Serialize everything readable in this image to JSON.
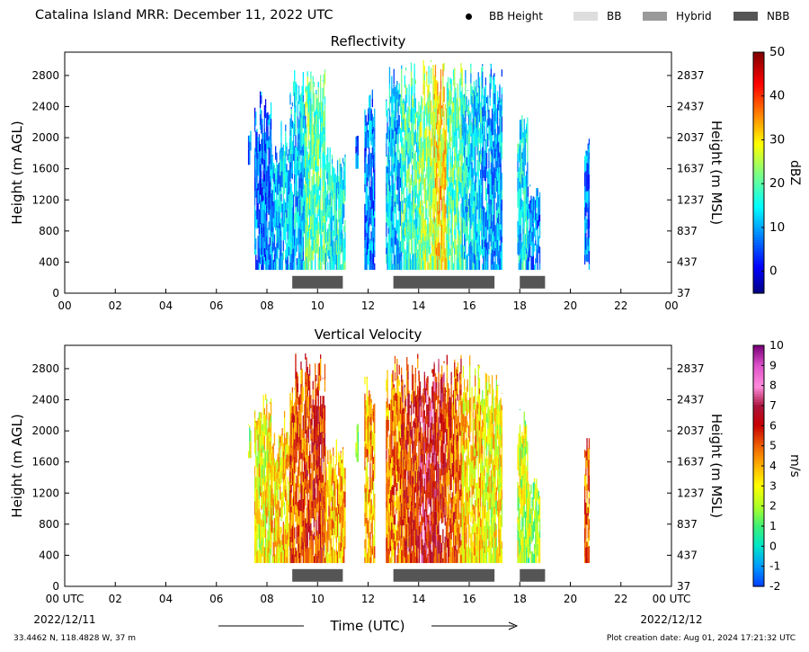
{
  "page": {
    "title": "Catalina Island MRR:  December 11, 2022 UTC",
    "footer_left": "33.4462 N, 118.4828 W, 37 m",
    "footer_right": "Plot creation date: Aug 01, 2024 17:21:32 UTC"
  },
  "legend": [
    {
      "label": "BB Height",
      "kind": "dot",
      "color": "#000000"
    },
    {
      "label": "BB",
      "kind": "swatch",
      "color": "#dddddd"
    },
    {
      "label": "Hybrid",
      "kind": "swatch",
      "color": "#999999"
    },
    {
      "label": "NBB",
      "kind": "swatch",
      "color": "#555555"
    }
  ],
  "xaxis": {
    "label": "Time (UTC)",
    "start_date": "2022/12/11",
    "end_date": "2022/12/12",
    "ticks_top_panel": [
      "00",
      "02",
      "04",
      "06",
      "08",
      "10",
      "12",
      "14",
      "16",
      "18",
      "20",
      "22",
      "00"
    ],
    "ticks_bottom_panel": [
      "00 UTC",
      "02",
      "04",
      "06",
      "08",
      "10",
      "12",
      "14",
      "16",
      "18",
      "20",
      "22",
      "00 UTC"
    ]
  },
  "chart_data": [
    {
      "type": "heatmap",
      "title": "Reflectivity",
      "xlabel": "",
      "ylabel": "Height (m AGL)",
      "ylabel_right": "Height (m MSL)",
      "xlim": [
        0,
        24
      ],
      "ylim": [
        0,
        3100
      ],
      "y_ticks": [
        "0",
        "400",
        "800",
        "1200",
        "1600",
        "2000",
        "2400",
        "2800"
      ],
      "y_ticks_right": [
        "37",
        "437",
        "837",
        "1237",
        "1637",
        "2037",
        "2437",
        "2837"
      ],
      "colorbar": {
        "label": "dBZ",
        "min": -5,
        "max": 50,
        "ticks": [
          "0",
          "10",
          "20",
          "30",
          "40",
          "50"
        ],
        "palette": "jet"
      },
      "precip_bars": [
        {
          "start": 9.0,
          "end": 11.0,
          "type": "NBB"
        },
        {
          "start": 13.0,
          "end": 17.0,
          "type": "NBB"
        },
        {
          "start": 18.0,
          "end": 19.0,
          "type": "NBB"
        }
      ],
      "echo_segments": [
        {
          "start": 7.25,
          "end": 7.35,
          "base": 1650,
          "top": 2100,
          "level": 8
        },
        {
          "start": 7.5,
          "end": 8.15,
          "base": 300,
          "top": 2600,
          "level": 7
        },
        {
          "start": 8.15,
          "end": 8.5,
          "base": 300,
          "top": 2000,
          "level": 10
        },
        {
          "start": 8.5,
          "end": 8.9,
          "base": 300,
          "top": 2300,
          "level": 12
        },
        {
          "start": 8.9,
          "end": 9.5,
          "base": 300,
          "top": 3000,
          "level": 12
        },
        {
          "start": 9.5,
          "end": 10.3,
          "base": 300,
          "top": 3000,
          "level": 20
        },
        {
          "start": 10.3,
          "end": 11.1,
          "base": 300,
          "top": 1900,
          "level": 16
        },
        {
          "start": 11.5,
          "end": 11.6,
          "base": 1600,
          "top": 2100,
          "level": 6
        },
        {
          "start": 11.85,
          "end": 12.25,
          "base": 300,
          "top": 2800,
          "level": 8
        },
        {
          "start": 12.7,
          "end": 13.3,
          "base": 300,
          "top": 3000,
          "level": 12
        },
        {
          "start": 13.3,
          "end": 14.0,
          "base": 300,
          "top": 3000,
          "level": 18
        },
        {
          "start": 14.0,
          "end": 14.6,
          "base": 300,
          "top": 3000,
          "level": 24
        },
        {
          "start": 14.6,
          "end": 15.1,
          "base": 300,
          "top": 3000,
          "level": 30
        },
        {
          "start": 15.1,
          "end": 15.7,
          "base": 300,
          "top": 3000,
          "level": 20
        },
        {
          "start": 15.7,
          "end": 16.5,
          "base": 300,
          "top": 3000,
          "level": 14
        },
        {
          "start": 16.5,
          "end": 17.3,
          "base": 300,
          "top": 3000,
          "level": 11
        },
        {
          "start": 17.9,
          "end": 18.3,
          "base": 300,
          "top": 2300,
          "level": 14
        },
        {
          "start": 18.3,
          "end": 18.8,
          "base": 300,
          "top": 1400,
          "level": 9
        },
        {
          "start": 20.55,
          "end": 20.75,
          "base": 300,
          "top": 2100,
          "level": 8
        }
      ]
    },
    {
      "type": "heatmap",
      "title": "Vertical Velocity",
      "xlabel": "Time (UTC)",
      "ylabel": "Height (m AGL)",
      "ylabel_right": "Height (m MSL)",
      "xlim": [
        0,
        24
      ],
      "ylim": [
        0,
        3100
      ],
      "y_ticks": [
        "0",
        "400",
        "800",
        "1200",
        "1600",
        "2000",
        "2400",
        "2800"
      ],
      "y_ticks_right": [
        "37",
        "437",
        "837",
        "1237",
        "1637",
        "2037",
        "2437",
        "2837"
      ],
      "colorbar": {
        "label": "m/s",
        "min": -2,
        "max": 10,
        "ticks": [
          "-2",
          "-1",
          "0",
          "1",
          "2",
          "3",
          "4",
          "5",
          "6",
          "7",
          "8",
          "9",
          "10"
        ],
        "palette": "velocity"
      },
      "precip_bars": [
        {
          "start": 9.0,
          "end": 11.0,
          "type": "NBB"
        },
        {
          "start": 13.0,
          "end": 17.0,
          "type": "NBB"
        },
        {
          "start": 18.0,
          "end": 19.0,
          "type": "NBB"
        }
      ],
      "echo_segments": [
        {
          "start": 7.25,
          "end": 7.35,
          "base": 1650,
          "top": 2100,
          "level": 2
        },
        {
          "start": 7.5,
          "end": 8.15,
          "base": 300,
          "top": 2600,
          "level": 3
        },
        {
          "start": 8.15,
          "end": 8.5,
          "base": 300,
          "top": 2000,
          "level": 3.5
        },
        {
          "start": 8.5,
          "end": 8.9,
          "base": 300,
          "top": 2300,
          "level": 3.5
        },
        {
          "start": 8.9,
          "end": 9.5,
          "base": 300,
          "top": 3000,
          "level": 5
        },
        {
          "start": 9.5,
          "end": 10.3,
          "base": 300,
          "top": 3000,
          "level": 5.5
        },
        {
          "start": 10.3,
          "end": 11.1,
          "base": 300,
          "top": 1900,
          "level": 4
        },
        {
          "start": 11.5,
          "end": 11.6,
          "base": 1600,
          "top": 2100,
          "level": 2
        },
        {
          "start": 11.85,
          "end": 12.25,
          "base": 300,
          "top": 2800,
          "level": 4
        },
        {
          "start": 12.7,
          "end": 13.3,
          "base": 300,
          "top": 3000,
          "level": 4.5
        },
        {
          "start": 13.3,
          "end": 14.0,
          "base": 300,
          "top": 3000,
          "level": 5.5
        },
        {
          "start": 14.0,
          "end": 14.6,
          "base": 300,
          "top": 3000,
          "level": 6.5
        },
        {
          "start": 14.6,
          "end": 15.1,
          "base": 300,
          "top": 3000,
          "level": 6
        },
        {
          "start": 15.1,
          "end": 15.7,
          "base": 300,
          "top": 3000,
          "level": 5
        },
        {
          "start": 15.7,
          "end": 16.5,
          "base": 300,
          "top": 3000,
          "level": 3.5
        },
        {
          "start": 16.5,
          "end": 17.3,
          "base": 300,
          "top": 3000,
          "level": 3
        },
        {
          "start": 17.9,
          "end": 18.3,
          "base": 300,
          "top": 2300,
          "level": 2.5
        },
        {
          "start": 18.3,
          "end": 18.8,
          "base": 300,
          "top": 1400,
          "level": 2
        },
        {
          "start": 20.55,
          "end": 20.75,
          "base": 300,
          "top": 2100,
          "level": 5
        }
      ]
    }
  ]
}
